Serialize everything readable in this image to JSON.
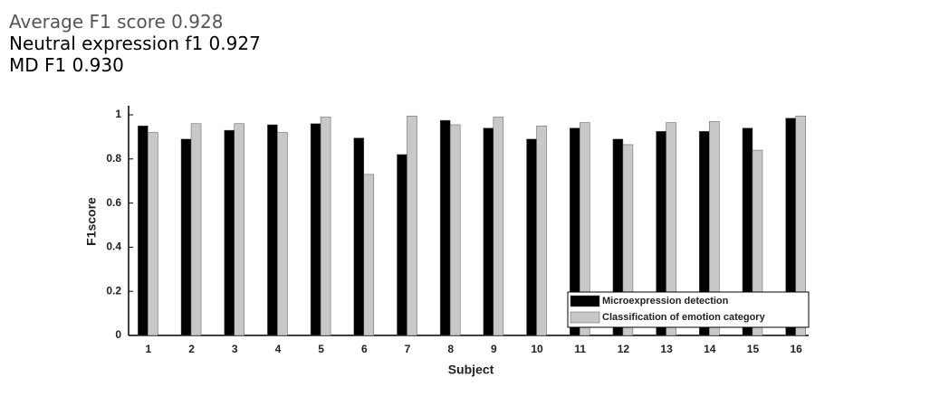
{
  "chart_data": {
    "type": "bar",
    "annotations": [
      "Average F1 score 0.928",
      "Neutral expression f1 0.927",
      "MD F1 0.930"
    ],
    "xlabel": "Subject",
    "ylabel": "F1score",
    "categories": [
      "1",
      "2",
      "3",
      "4",
      "5",
      "6",
      "7",
      "8",
      "9",
      "10",
      "11",
      "12",
      "13",
      "14",
      "15",
      "16"
    ],
    "series": [
      {
        "name": "Microexpression detection",
        "color": "#000000",
        "values": [
          0.95,
          0.89,
          0.93,
          0.955,
          0.96,
          0.895,
          0.82,
          0.975,
          0.94,
          0.89,
          0.94,
          0.89,
          0.925,
          0.925,
          0.94,
          0.985
        ]
      },
      {
        "name": "Classification of emotion category",
        "color": "#c8c8c8",
        "values": [
          0.92,
          0.96,
          0.96,
          0.92,
          0.99,
          0.73,
          0.995,
          0.955,
          0.99,
          0.95,
          0.965,
          0.865,
          0.965,
          0.97,
          0.84,
          0.995
        ]
      }
    ],
    "ylim": [
      0,
      1
    ],
    "yticks": [
      0,
      0.2,
      0.4,
      0.6,
      0.8,
      1
    ],
    "grid": false,
    "legend": "lower right"
  }
}
